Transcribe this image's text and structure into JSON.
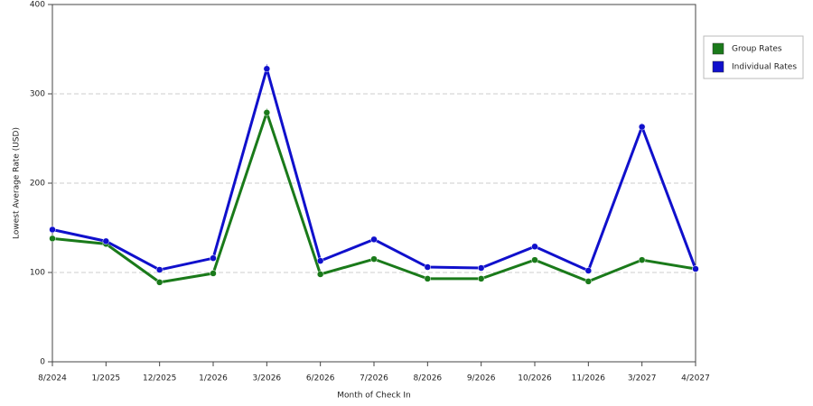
{
  "chart_data": {
    "type": "line",
    "x_label": "Month of Check In",
    "y_label": "Lowest Average Rate (USD)",
    "categories": [
      "8/2024",
      "1/2025",
      "12/2025",
      "1/2026",
      "3/2026",
      "6/2026",
      "7/2026",
      "8/2026",
      "9/2026",
      "10/2026",
      "11/2026",
      "3/2027",
      "4/2027"
    ],
    "series": [
      {
        "name": "Group Rates",
        "color": "#1a7a1a",
        "values": [
          138,
          132,
          89,
          99,
          279,
          98,
          115,
          93,
          93,
          114,
          90,
          114,
          104
        ]
      },
      {
        "name": "Individual Rates",
        "color": "#1010cc",
        "values": [
          148,
          135,
          103,
          116,
          328,
          113,
          137,
          106,
          105,
          129,
          102,
          263,
          104
        ]
      }
    ],
    "ylim": [
      0,
      400
    ],
    "yticks": [
      0,
      100,
      200,
      300,
      400
    ],
    "grid": true,
    "legend": "right"
  }
}
